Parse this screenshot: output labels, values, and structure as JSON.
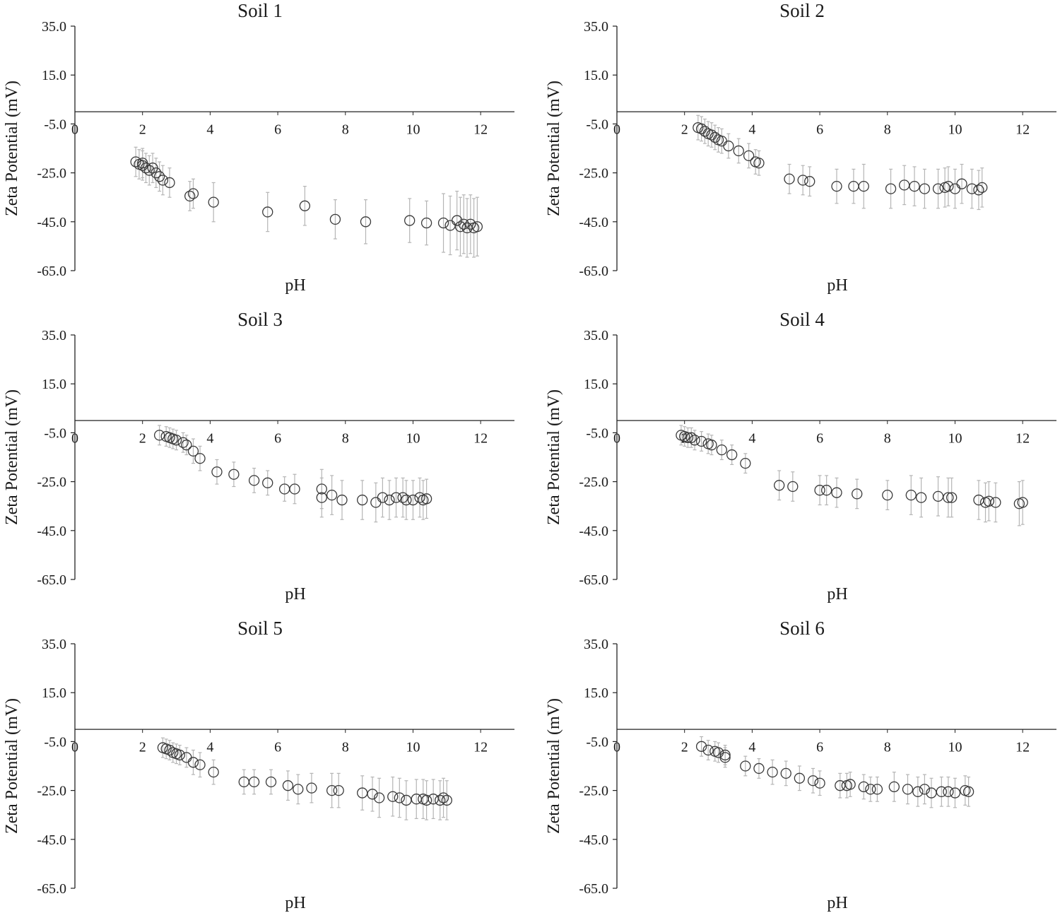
{
  "chart_data": [
    {
      "type": "scatter",
      "title": "Soil 1",
      "xlabel": "pH",
      "ylabel": "Zeta Potential (mV)",
      "xlim": [
        0,
        13
      ],
      "ylim": [
        -65,
        35
      ],
      "xticks": [
        "0",
        "2",
        "4",
        "6",
        "8",
        "10",
        "12"
      ],
      "yticks": [
        "35.0",
        "15.0",
        "-5.0",
        "-25.0",
        "-45.0",
        "-65.0"
      ],
      "x": [
        1.8,
        1.9,
        2.0,
        2.0,
        2.1,
        2.2,
        2.3,
        2.4,
        2.5,
        2.6,
        2.8,
        3.4,
        3.5,
        4.1,
        5.7,
        6.8,
        7.7,
        8.6,
        9.9,
        10.4,
        10.9,
        11.1,
        11.3,
        11.4,
        11.5,
        11.6,
        11.7,
        11.8,
        11.9
      ],
      "y": [
        -20.5,
        -21.5,
        -22.0,
        -21.0,
        -23.0,
        -24.0,
        -23.0,
        -25.0,
        -26.5,
        -28.0,
        -29.0,
        -34.5,
        -33.5,
        -37.0,
        -41.0,
        -38.5,
        -44.0,
        -45.0,
        -44.5,
        -45.5,
        -45.5,
        -46.5,
        -44.5,
        -47.0,
        -46.0,
        -47.5,
        -46.0,
        -47.5,
        -47.0
      ],
      "yerr": [
        6,
        6,
        6,
        6,
        6,
        6,
        6,
        6,
        6,
        6,
        6,
        6,
        6,
        8,
        8,
        8,
        8,
        9,
        9,
        9,
        12,
        12,
        12,
        12,
        12,
        12,
        12,
        12,
        12
      ]
    },
    {
      "type": "scatter",
      "title": "Soil 2",
      "xlabel": "pH",
      "ylabel": "Zeta Potential (mV)",
      "xlim": [
        0,
        13
      ],
      "ylim": [
        -65,
        35
      ],
      "xticks": [
        "0",
        "2",
        "4",
        "6",
        "8",
        "10",
        "12"
      ],
      "yticks": [
        "35.0",
        "15.0",
        "-5.0",
        "-25.0",
        "-45.0",
        "-65.0"
      ],
      "x": [
        2.4,
        2.5,
        2.6,
        2.7,
        2.8,
        2.9,
        3.0,
        3.1,
        3.3,
        3.6,
        3.9,
        4.1,
        4.2,
        5.1,
        5.5,
        5.7,
        6.5,
        7.0,
        7.3,
        8.1,
        8.5,
        8.8,
        9.1,
        9.5,
        9.7,
        9.8,
        10.0,
        10.2,
        10.5,
        10.7,
        10.8
      ],
      "y": [
        -6.5,
        -7.0,
        -8.0,
        -9.0,
        -9.5,
        -10.5,
        -11.5,
        -12.0,
        -14.0,
        -16.0,
        -18.0,
        -20.5,
        -21.0,
        -27.5,
        -28.0,
        -28.5,
        -30.5,
        -30.5,
        -30.5,
        -31.5,
        -30.0,
        -30.5,
        -31.5,
        -31.5,
        -31.0,
        -30.5,
        -31.5,
        -29.5,
        -31.5,
        -32.0,
        -31.0
      ],
      "yerr": [
        5,
        5,
        5,
        5,
        5,
        5,
        5,
        5,
        5,
        5,
        5,
        5,
        5,
        6,
        6,
        6,
        7,
        7,
        9,
        8,
        8,
        8,
        8,
        8,
        8,
        8,
        8,
        8,
        8,
        8,
        8
      ]
    },
    {
      "type": "scatter",
      "title": "Soil 3",
      "xlabel": "pH",
      "ylabel": "Zeta Potential (mV)",
      "xlim": [
        0,
        13
      ],
      "ylim": [
        -65,
        35
      ],
      "xticks": [
        "0",
        "2",
        "4",
        "6",
        "8",
        "10",
        "12"
      ],
      "yticks": [
        "35.0",
        "15.0",
        "-5.0",
        "-25.0",
        "-45.0",
        "-65.0"
      ],
      "x": [
        2.5,
        2.7,
        2.8,
        2.9,
        3.0,
        3.2,
        3.3,
        3.5,
        3.7,
        4.2,
        4.7,
        5.3,
        5.7,
        6.2,
        6.5,
        7.3,
        7.3,
        7.6,
        7.9,
        8.5,
        8.9,
        9.1,
        9.3,
        9.5,
        9.7,
        9.8,
        10.0,
        10.2,
        10.3,
        10.4
      ],
      "y": [
        -6.0,
        -6.5,
        -7.0,
        -7.5,
        -8.0,
        -9.0,
        -10.0,
        -12.5,
        -15.5,
        -21.0,
        -22.0,
        -24.5,
        -25.5,
        -28.0,
        -28.0,
        -28.0,
        -31.5,
        -30.5,
        -32.5,
        -32.5,
        -33.5,
        -31.5,
        -32.5,
        -31.5,
        -31.5,
        -32.5,
        -32.5,
        -31.5,
        -32.5,
        -32.0
      ],
      "yerr": [
        4,
        4,
        4,
        4,
        4,
        4,
        4,
        5,
        5,
        5,
        5,
        5,
        5,
        5,
        6,
        8,
        8,
        8,
        8,
        8,
        8,
        8,
        8,
        8,
        8,
        8,
        8,
        8,
        8,
        8
      ]
    },
    {
      "type": "scatter",
      "title": "Soil 4",
      "xlabel": "pH",
      "ylabel": "Zeta Potential (mV)",
      "xlim": [
        0,
        13
      ],
      "ylim": [
        -65,
        35
      ],
      "xticks": [
        "0",
        "2",
        "4",
        "6",
        "8",
        "10",
        "12"
      ],
      "yticks": [
        "35.0",
        "15.0",
        "-5.0",
        "-25.0",
        "-45.0",
        "-65.0"
      ],
      "x": [
        1.9,
        2.0,
        2.1,
        2.2,
        2.3,
        2.5,
        2.7,
        2.8,
        3.1,
        3.4,
        3.8,
        4.8,
        5.2,
        6.0,
        6.2,
        6.5,
        7.1,
        8.0,
        8.7,
        9.0,
        9.5,
        9.8,
        9.9,
        10.7,
        10.9,
        11.0,
        11.2,
        11.9,
        12.0
      ],
      "y": [
        -6.0,
        -6.5,
        -7.0,
        -7.0,
        -8.0,
        -8.5,
        -9.5,
        -10.0,
        -12.0,
        -14.0,
        -17.5,
        -26.5,
        -27.0,
        -28.5,
        -28.5,
        -29.5,
        -30.0,
        -30.5,
        -30.5,
        -31.5,
        -31.0,
        -31.5,
        -31.5,
        -32.5,
        -33.5,
        -33.0,
        -33.5,
        -34.0,
        -33.5
      ],
      "yerr": [
        4,
        4,
        4,
        4,
        4,
        4,
        4,
        4,
        4,
        4,
        4,
        6,
        6,
        6,
        6,
        6,
        6,
        6,
        8,
        8,
        8,
        8,
        8,
        8,
        8,
        8,
        8,
        9,
        9
      ]
    },
    {
      "type": "scatter",
      "title": "Soil  5",
      "xlabel": "pH",
      "ylabel": "Zeta Potential (mV)",
      "xlim": [
        0,
        13
      ],
      "ylim": [
        -65,
        35
      ],
      "xticks": [
        "0",
        "2",
        "4",
        "6",
        "8",
        "10",
        "12"
      ],
      "yticks": [
        "35.0",
        "15.0",
        "-5.0",
        "-25.0",
        "-45.0",
        "-65.0"
      ],
      "x": [
        2.6,
        2.7,
        2.8,
        2.9,
        3.0,
        3.1,
        3.3,
        3.5,
        3.7,
        4.1,
        5.0,
        5.3,
        5.8,
        6.3,
        6.6,
        7.0,
        7.6,
        7.8,
        8.5,
        8.8,
        9.0,
        9.4,
        9.6,
        9.8,
        10.1,
        10.3,
        10.4,
        10.6,
        10.8,
        10.9,
        11.0
      ],
      "y": [
        -7.5,
        -8.0,
        -8.5,
        -9.5,
        -10.0,
        -10.5,
        -11.5,
        -13.5,
        -14.5,
        -17.5,
        -21.5,
        -21.5,
        -21.5,
        -23.0,
        -24.5,
        -24.0,
        -25.0,
        -25.0,
        -26.0,
        -26.5,
        -28.0,
        -27.5,
        -28.0,
        -29.0,
        -28.5,
        -28.5,
        -29.0,
        -28.5,
        -29.0,
        -28.0,
        -29.0
      ],
      "yerr": [
        4,
        4,
        4,
        4,
        4,
        4,
        4,
        5,
        5,
        5,
        5,
        5,
        5,
        6,
        6,
        6,
        7,
        7,
        7,
        7,
        8,
        8,
        8,
        8,
        8,
        8,
        8,
        8,
        8,
        8,
        8
      ]
    },
    {
      "type": "scatter",
      "title": "Soil  6",
      "xlabel": "pH",
      "ylabel": "Zeta Potential (mV)",
      "xlim": [
        0,
        13
      ],
      "ylim": [
        -65,
        35
      ],
      "xticks": [
        "0",
        "2",
        "4",
        "6",
        "8",
        "10",
        "12"
      ],
      "yticks": [
        "35.0",
        "15.0",
        "-5.0",
        "-25.0",
        "-45.0",
        "-65.0"
      ],
      "x": [
        2.5,
        2.7,
        2.9,
        3.0,
        3.2,
        3.2,
        3.8,
        4.2,
        4.6,
        5.0,
        5.4,
        5.8,
        6.0,
        6.6,
        6.8,
        6.9,
        7.3,
        7.5,
        7.7,
        8.2,
        8.6,
        8.9,
        9.1,
        9.3,
        9.6,
        9.8,
        10.0,
        10.3,
        10.4
      ],
      "y": [
        -7.0,
        -8.5,
        -9.0,
        -9.5,
        -10.5,
        -11.5,
        -15.0,
        -16.0,
        -17.5,
        -18.0,
        -20.0,
        -21.0,
        -22.0,
        -23.0,
        -23.0,
        -22.5,
        -23.5,
        -24.5,
        -24.5,
        -23.5,
        -24.5,
        -25.5,
        -24.5,
        -26.0,
        -25.5,
        -25.5,
        -26.0,
        -25.0,
        -25.5
      ],
      "yerr": [
        4,
        4,
        4,
        4,
        4,
        4,
        4,
        4,
        5,
        5,
        5,
        5,
        5,
        5,
        5,
        5,
        5,
        5,
        5,
        6,
        6,
        6,
        6,
        6,
        6,
        6,
        6,
        6,
        6
      ]
    }
  ]
}
